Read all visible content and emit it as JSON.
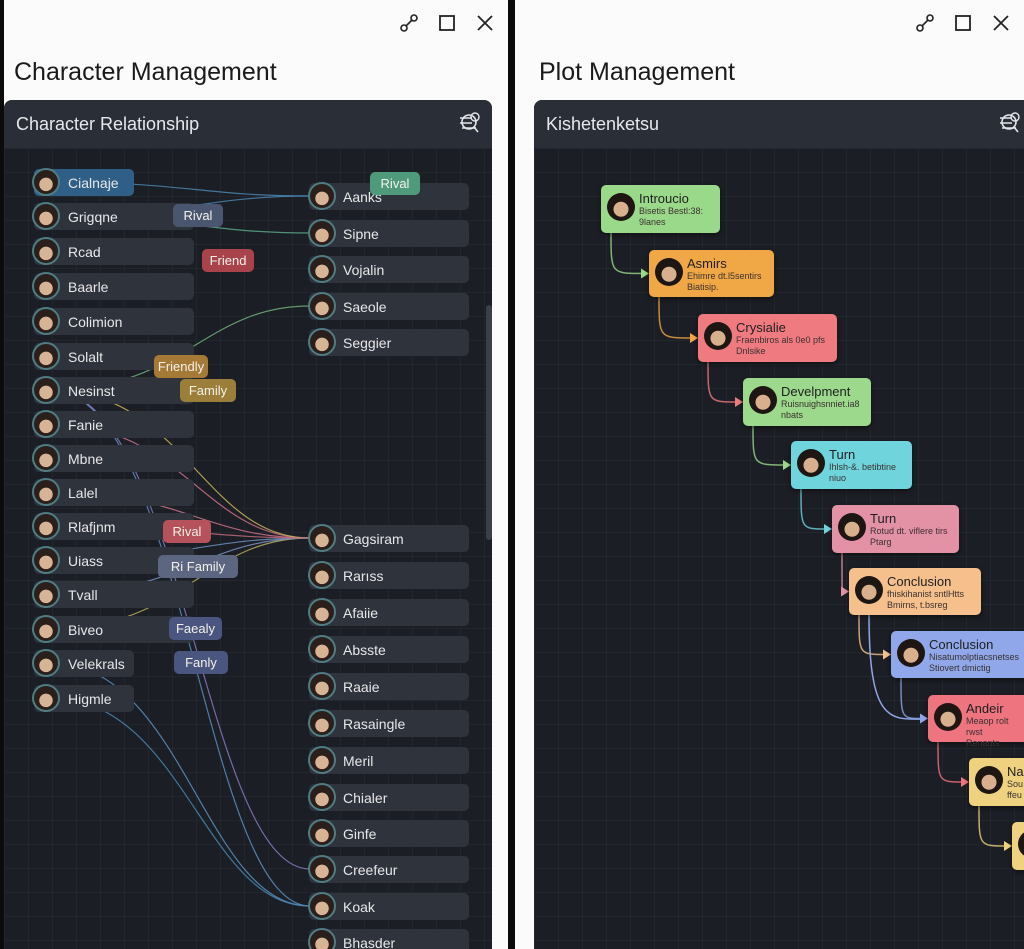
{
  "windows": [
    {
      "title": "Character Management",
      "panel_title": "Character Relationship"
    },
    {
      "title": "Plot Management",
      "panel_title": "Kishetenketsu"
    }
  ],
  "window_controls": [
    "link-icon",
    "maximize-icon",
    "close-icon"
  ],
  "panel_icons": [
    "search-people-icon",
    "settings-list-icon"
  ],
  "left_characters": [
    "Cialnaje",
    "Grigqne",
    "Rcad",
    "Baarle",
    "Colimion",
    "Solalt",
    "Nesinst",
    "Fanie",
    "Mbne",
    "Lalel",
    "Rlafjnm",
    "Uiass",
    "Tvall",
    "Biveo",
    "Velekrals",
    "Higmle"
  ],
  "right_characters": [
    "Aanks",
    "Sipne",
    "Vojalin",
    "Saeole",
    "Seggier",
    "Gagsiram",
    "Rarıss",
    "Afaiie",
    "Absste",
    "Raaie",
    "Rasaingle",
    "Meril",
    "Chialer",
    "Ginfe",
    "Creefeur",
    "Koak",
    "Bhasder"
  ],
  "relation_tags": [
    {
      "label": "Rival",
      "color": "#4f9a7a"
    },
    {
      "label": "Rival",
      "color": "#4a5670"
    },
    {
      "label": "Friend",
      "color": "#a8434c"
    },
    {
      "label": "Friendly",
      "color": "#a57a36"
    },
    {
      "label": "Family",
      "color": "#9a7e3a"
    },
    {
      "label": "Rival",
      "color": "#b5525b"
    },
    {
      "label": "Ri  Family",
      "color": "#5c6680"
    },
    {
      "label": "Faealy",
      "color": "#4b5680"
    },
    {
      "label": "Fanly",
      "color": "#4b5680"
    }
  ],
  "plot_nodes": [
    {
      "title": "Introucio",
      "lines": [
        "Bisetis Bestl:38:",
        "9lanes"
      ],
      "color": "#9bd98a"
    },
    {
      "title": "Asmirs",
      "lines": [
        "Ehimre dt.l5sentirs",
        "Biatisip."
      ],
      "color": "#f0a847"
    },
    {
      "title": "Crysialie",
      "lines": [
        "Fraenbiros als 0e0 pfs",
        "Dnlsike"
      ],
      "color": "#ef7b80"
    },
    {
      "title": "Develpment",
      "lines": [
        "Ruisnuighsnniet.ia8",
        "nbats"
      ],
      "color": "#9cd98c"
    },
    {
      "title": "Turn",
      "lines": [
        "Ihlsh-&. betibtine",
        "niuo"
      ],
      "color": "#70d4dd"
    },
    {
      "title": "Turn",
      "lines": [
        "Rotud dt. viflere tirs",
        "Ptarg"
      ],
      "color": "#e392a6"
    },
    {
      "title": "Conclusion",
      "lines": [
        "fhiskihanist sntlHtts",
        "Bmirns, t.bsreg"
      ],
      "color": "#f6c08d"
    },
    {
      "title": "Conclusion",
      "lines": [
        "Nisatumolptiacsnetses",
        "Stiovert dmictig"
      ],
      "color": "#90a7e9"
    },
    {
      "title": "Andeir",
      "lines": [
        "Meaop rolt rwst",
        "Renants"
      ],
      "color": "#ee7480"
    },
    {
      "title": "Na",
      "lines": [
        "Sou",
        "ffeu"
      ],
      "color": "#efd27f"
    },
    {
      "title": "",
      "lines": [],
      "color": "#efd27f"
    }
  ]
}
